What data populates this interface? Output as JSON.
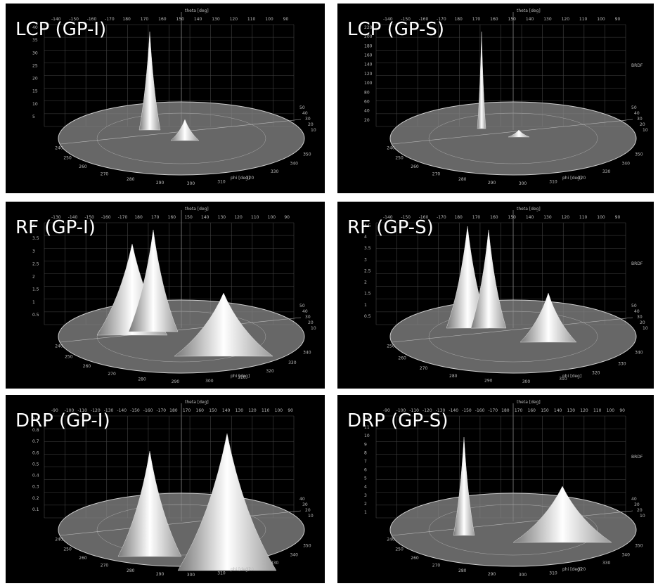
{
  "panels": [
    {
      "title": "LCP (GP-I)",
      "theta_label": "theta [deg]",
      "phi_label": "phi [deg]",
      "theta_ticks": [
        -140,
        -150,
        -160,
        -170,
        180,
        170,
        160,
        150,
        140,
        130,
        120,
        110,
        100,
        90
      ],
      "height_ticks": [
        40,
        35,
        30,
        25,
        20,
        15,
        10,
        5
      ],
      "phi_ticks": [
        240,
        250,
        260,
        270,
        280,
        290,
        300,
        310,
        320,
        330,
        340,
        350
      ],
      "radial_ticks": [
        50,
        40,
        30,
        20,
        10
      ]
    },
    {
      "title": "LCP (GP-S)",
      "theta_label": "theta [deg]",
      "phi_label": "phi [deg]",
      "brdf_label": "BRDF",
      "theta_ticks": [
        -140,
        -150,
        -160,
        -170,
        180,
        170,
        160,
        150,
        140,
        130,
        120,
        110,
        100,
        90
      ],
      "height_ticks": [
        220,
        200,
        180,
        160,
        140,
        120,
        100,
        80,
        60,
        40,
        20
      ],
      "phi_ticks": [
        240,
        250,
        260,
        270,
        280,
        290,
        300,
        310,
        320,
        330,
        340,
        350
      ],
      "radial_ticks": [
        50,
        40,
        30,
        20,
        10
      ]
    },
    {
      "title": "RF (GP-I)",
      "theta_label": "theta [deg]",
      "phi_label": "phi [deg]",
      "theta_ticks": [
        -130,
        -140,
        -150,
        -160,
        -170,
        180,
        170,
        160,
        150,
        140,
        130,
        120,
        110,
        100,
        90
      ],
      "height_ticks": [
        4,
        3.5,
        3,
        2.5,
        2,
        1.5,
        1,
        0.5
      ],
      "phi_ticks": [
        240,
        250,
        260,
        270,
        280,
        290,
        300,
        310,
        320,
        330,
        340
      ],
      "radial_ticks": [
        50,
        40,
        30,
        20,
        10
      ]
    },
    {
      "title": "RF (GP-S)",
      "theta_label": "theta [deg]",
      "phi_label": "phi [deg]",
      "brdf_label": "BRDF",
      "theta_ticks": [
        -140,
        -150,
        -160,
        -170,
        180,
        170,
        160,
        150,
        140,
        130,
        120,
        110,
        100,
        90
      ],
      "height_ticks": [
        4.5,
        4,
        3.5,
        3,
        2.5,
        2,
        1.5,
        1,
        0.5
      ],
      "phi_ticks": [
        250,
        260,
        270,
        280,
        290,
        300,
        310,
        320,
        330,
        340
      ],
      "radial_ticks": [
        50,
        40,
        30,
        20,
        10
      ]
    },
    {
      "title": "DRP (GP-I)",
      "theta_label": "theta [deg]",
      "phi_label": "phi [deg]",
      "theta_ticks": [
        -90,
        -100,
        -110,
        -120,
        -130,
        -140,
        -150,
        -160,
        -170,
        180,
        170,
        160,
        150,
        140,
        130,
        120,
        110,
        100,
        90
      ],
      "height_ticks": [
        0.9,
        0.8,
        0.7,
        0.6,
        0.5,
        0.4,
        0.3,
        0.2,
        0.1
      ],
      "phi_ticks": [
        240,
        250,
        260,
        270,
        280,
        290,
        300,
        310,
        320,
        330,
        340,
        350
      ],
      "radial_ticks": [
        40,
        30,
        20,
        10
      ]
    },
    {
      "title": "DRP (GP-S)",
      "theta_label": "theta [deg]",
      "phi_label": "phi [deg]",
      "brdf_label": "BRDF",
      "theta_ticks": [
        -90,
        -100,
        -110,
        -120,
        -130,
        -140,
        -150,
        -160,
        -170,
        180,
        170,
        160,
        150,
        140,
        130,
        120,
        110,
        100,
        90
      ],
      "height_ticks": [
        12,
        11,
        10,
        9,
        8,
        7,
        6,
        5,
        4,
        3,
        2,
        1
      ],
      "phi_ticks": [
        240,
        250,
        260,
        270,
        280,
        290,
        300,
        310,
        320,
        330,
        340,
        350
      ],
      "radial_ticks": [
        40,
        30,
        20,
        10
      ]
    }
  ]
}
